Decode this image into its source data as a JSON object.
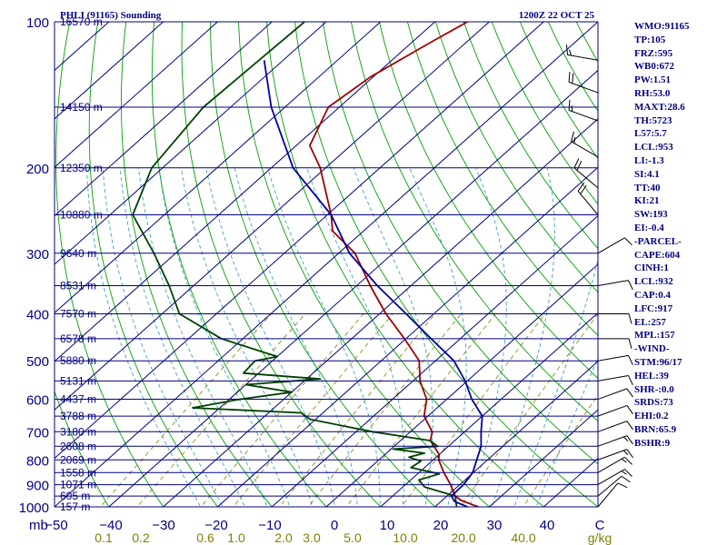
{
  "header": {
    "station": "PHLI (91165) Sounding",
    "time": "1200Z 22 OCT 25"
  },
  "colors": {
    "frame": "#000080",
    "isotherm": "#000080",
    "dry_adiabat": "#00a000",
    "moist_adiabat": "#40a0c0",
    "mixing_ratio": "#808000",
    "temperature": "#a00000",
    "dewpoint": "#004000",
    "parcel": "#0000a0",
    "wind_barb": "#000000"
  },
  "indices": [
    "WMO:91165",
    "TP:105",
    "FRZ:595",
    "WB0:672",
    "PW:1.51",
    "RH:53.0",
    "MAXT:28.6",
    "TH:5723",
    "L57:5.7",
    "LCL:953",
    "LI:-1.3",
    "SI:4.1",
    "TT:40",
    "KI:21",
    "SW:193",
    "EI:-0.4",
    "-PARCEL-",
    "CAPE:604",
    "CINH:1",
    "LCL:932",
    "CAP:0.4",
    "LFC:917",
    "EL:257",
    "MPL:157",
    "-WIND-",
    "STM:96/17",
    "HEL:39",
    "SHR-:0.0",
    "SRDS:73",
    "EHI:0.2",
    "BRN:65.9",
    "BSHR:9"
  ],
  "chart_data": {
    "type": "line",
    "subtype": "skew-t log-p sounding",
    "x_unit": "°C",
    "y_unit": "mb",
    "unit_label": "mb",
    "mixing_ratio_unit": "g/kg",
    "ylim": [
      1000,
      100
    ],
    "xlim": [
      -50,
      50
    ],
    "pressure_ticks": [
      100,
      200,
      300,
      400,
      500,
      600,
      700,
      800,
      900,
      1000
    ],
    "temperature_ticks": [
      "−50",
      "−40",
      "−30",
      "−20",
      "−10",
      "0",
      "10",
      "20",
      "30",
      "40",
      "C"
    ],
    "mixing_ratio_ticks": [
      "0.1",
      "0.2",
      "0.6",
      "1.0",
      "2.0",
      "3.0",
      "5.0",
      "10.0",
      "20.0",
      "40.0"
    ],
    "mixing_ratio_values": [
      0.1,
      0.2,
      0.6,
      1.0,
      2.0,
      3.0,
      5.0,
      10.0,
      20.0,
      40.0
    ],
    "height_labels": [
      {
        "p": 100,
        "text": "16570 m"
      },
      {
        "p": 150,
        "text": "14150 m"
      },
      {
        "p": 200,
        "text": "12350 m"
      },
      {
        "p": 250,
        "text": "10880 m"
      },
      {
        "p": 300,
        "text": "9640 m"
      },
      {
        "p": 350,
        "text": "8531 m"
      },
      {
        "p": 400,
        "text": "7570 m"
      },
      {
        "p": 450,
        "text": "6578 m"
      },
      {
        "p": 500,
        "text": "5880 m"
      },
      {
        "p": 550,
        "text": "5131 m"
      },
      {
        "p": 600,
        "text": "4437 m"
      },
      {
        "p": 650,
        "text": "3788 m"
      },
      {
        "p": 700,
        "text": "3180 m"
      },
      {
        "p": 750,
        "text": "2608 m"
      },
      {
        "p": 800,
        "text": "2069 m"
      },
      {
        "p": 850,
        "text": "1558 m"
      },
      {
        "p": 900,
        "text": "1071 m"
      },
      {
        "p": 950,
        "text": "605 m"
      },
      {
        "p": 1000,
        "text": "157 m"
      }
    ],
    "series": [
      {
        "key": "temperature",
        "points": [
          [
            100,
            -74.0
          ],
          [
            110,
            -76.5
          ],
          [
            130,
            -80.5
          ],
          [
            150,
            -82.0
          ],
          [
            180,
            -77.5
          ],
          [
            200,
            -71.0
          ],
          [
            250,
            -59.3
          ],
          [
            270,
            -55.7
          ],
          [
            300,
            -47.0
          ],
          [
            350,
            -37.5
          ],
          [
            400,
            -28.8
          ],
          [
            450,
            -20.3
          ],
          [
            500,
            -13.0
          ],
          [
            550,
            -8.7
          ],
          [
            600,
            -3.7
          ],
          [
            650,
            -0.7
          ],
          [
            700,
            4.0
          ],
          [
            730,
            5.5
          ],
          [
            780,
            10.0
          ],
          [
            800,
            11.0
          ],
          [
            850,
            14.6
          ],
          [
            900,
            18.3
          ],
          [
            950,
            21.5
          ],
          [
            970,
            23.5
          ],
          [
            990,
            26.5
          ],
          [
            1000,
            28.0
          ]
        ]
      },
      {
        "key": "dewpoint",
        "points": [
          [
            100,
            -104.0
          ],
          [
            150,
            -105.0
          ],
          [
            200,
            -102.0
          ],
          [
            250,
            -95.8
          ],
          [
            300,
            -84.0
          ],
          [
            350,
            -74.5
          ],
          [
            400,
            -66.8
          ],
          [
            450,
            -54.0
          ],
          [
            490,
            -40.0
          ],
          [
            500,
            -43.2
          ],
          [
            530,
            -42.8
          ],
          [
            545,
            -27.5
          ],
          [
            560,
            -40.0
          ],
          [
            580,
            -30.0
          ],
          [
            600,
            -38.0
          ],
          [
            625,
            -45.0
          ],
          [
            640,
            -24.0
          ],
          [
            660,
            -21.0
          ],
          [
            700,
            -7.0
          ],
          [
            730,
            5.4
          ],
          [
            750,
            8.0
          ],
          [
            760,
            0.4
          ],
          [
            775,
            7.0
          ],
          [
            790,
            5.0
          ],
          [
            805,
            8.0
          ],
          [
            830,
            7.5
          ],
          [
            855,
            14.0
          ],
          [
            880,
            11.5
          ],
          [
            910,
            14.0
          ],
          [
            950,
            21.5
          ],
          [
            1000,
            24.0
          ]
        ]
      },
      {
        "key": "parcel",
        "points": [
          [
            120,
            -103.5
          ],
          [
            150,
            -92.5
          ],
          [
            200,
            -76.0
          ],
          [
            250,
            -59.3
          ],
          [
            300,
            -48.0
          ],
          [
            350,
            -36.2
          ],
          [
            400,
            -25.1
          ],
          [
            450,
            -15.4
          ],
          [
            500,
            -6.6
          ],
          [
            550,
            -0.4
          ],
          [
            600,
            4.6
          ],
          [
            650,
            10.0
          ],
          [
            700,
            13.0
          ],
          [
            750,
            16.0
          ],
          [
            800,
            18.0
          ],
          [
            850,
            19.9
          ],
          [
            900,
            20.7
          ],
          [
            950,
            20.8
          ],
          [
            975,
            22.5
          ],
          [
            1000,
            26.0
          ]
        ]
      }
    ],
    "wind_barbs": [
      {
        "p": 120,
        "dir": 280,
        "spd": 15
      },
      {
        "p": 140,
        "dir": 290,
        "spd": 20
      },
      {
        "p": 160,
        "dir": 290,
        "spd": 15
      },
      {
        "p": 190,
        "dir": 300,
        "spd": 15
      },
      {
        "p": 220,
        "dir": 310,
        "spd": 20
      },
      {
        "p": 250,
        "dir": 320,
        "spd": 20
      },
      {
        "p": 300,
        "dir": 60,
        "spd": 10
      },
      {
        "p": 350,
        "dir": 80,
        "spd": 10
      },
      {
        "p": 400,
        "dir": 90,
        "spd": 10
      },
      {
        "p": 450,
        "dir": 90,
        "spd": 10
      },
      {
        "p": 500,
        "dir": 80,
        "spd": 10
      },
      {
        "p": 550,
        "dir": 80,
        "spd": 10
      },
      {
        "p": 600,
        "dir": 70,
        "spd": 10
      },
      {
        "p": 650,
        "dir": 70,
        "spd": 10
      },
      {
        "p": 700,
        "dir": 70,
        "spd": 10
      },
      {
        "p": 750,
        "dir": 70,
        "spd": 15
      },
      {
        "p": 800,
        "dir": 70,
        "spd": 15
      },
      {
        "p": 850,
        "dir": 60,
        "spd": 15
      },
      {
        "p": 900,
        "dir": 60,
        "spd": 15
      },
      {
        "p": 950,
        "dir": 50,
        "spd": 10
      },
      {
        "p": 1000,
        "dir": 40,
        "spd": 10
      }
    ]
  }
}
